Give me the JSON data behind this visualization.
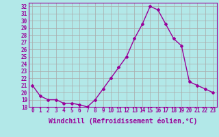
{
  "x": [
    0,
    1,
    2,
    3,
    4,
    5,
    6,
    7,
    8,
    9,
    10,
    11,
    12,
    13,
    14,
    15,
    16,
    17,
    18,
    19,
    20,
    21,
    22,
    23
  ],
  "y": [
    21,
    19.5,
    19,
    19,
    18.5,
    18.5,
    18.3,
    18,
    19,
    20.5,
    22,
    23.5,
    25,
    27.5,
    29.5,
    32,
    31.5,
    29.5,
    27.5,
    26.5,
    21.5,
    21,
    20.5,
    20
  ],
  "line_color": "#990099",
  "marker": "D",
  "markersize": 2.0,
  "linewidth": 1.0,
  "xlabel": "Windchill (Refroidissement éolien,°C)",
  "xlabel_fontsize": 7,
  "bg_color": "#b2e8e8",
  "grid_color": "#aaaaaa",
  "tick_color": "#990099",
  "tick_fontsize": 5.5,
  "ylim": [
    18,
    32.5
  ],
  "xlim": [
    -0.5,
    23.5
  ],
  "yticks": [
    18,
    19,
    20,
    21,
    22,
    23,
    24,
    25,
    26,
    27,
    28,
    29,
    30,
    31,
    32
  ],
  "xticks": [
    0,
    1,
    2,
    3,
    4,
    5,
    6,
    7,
    8,
    9,
    10,
    11,
    12,
    13,
    14,
    15,
    16,
    17,
    18,
    19,
    20,
    21,
    22,
    23
  ]
}
